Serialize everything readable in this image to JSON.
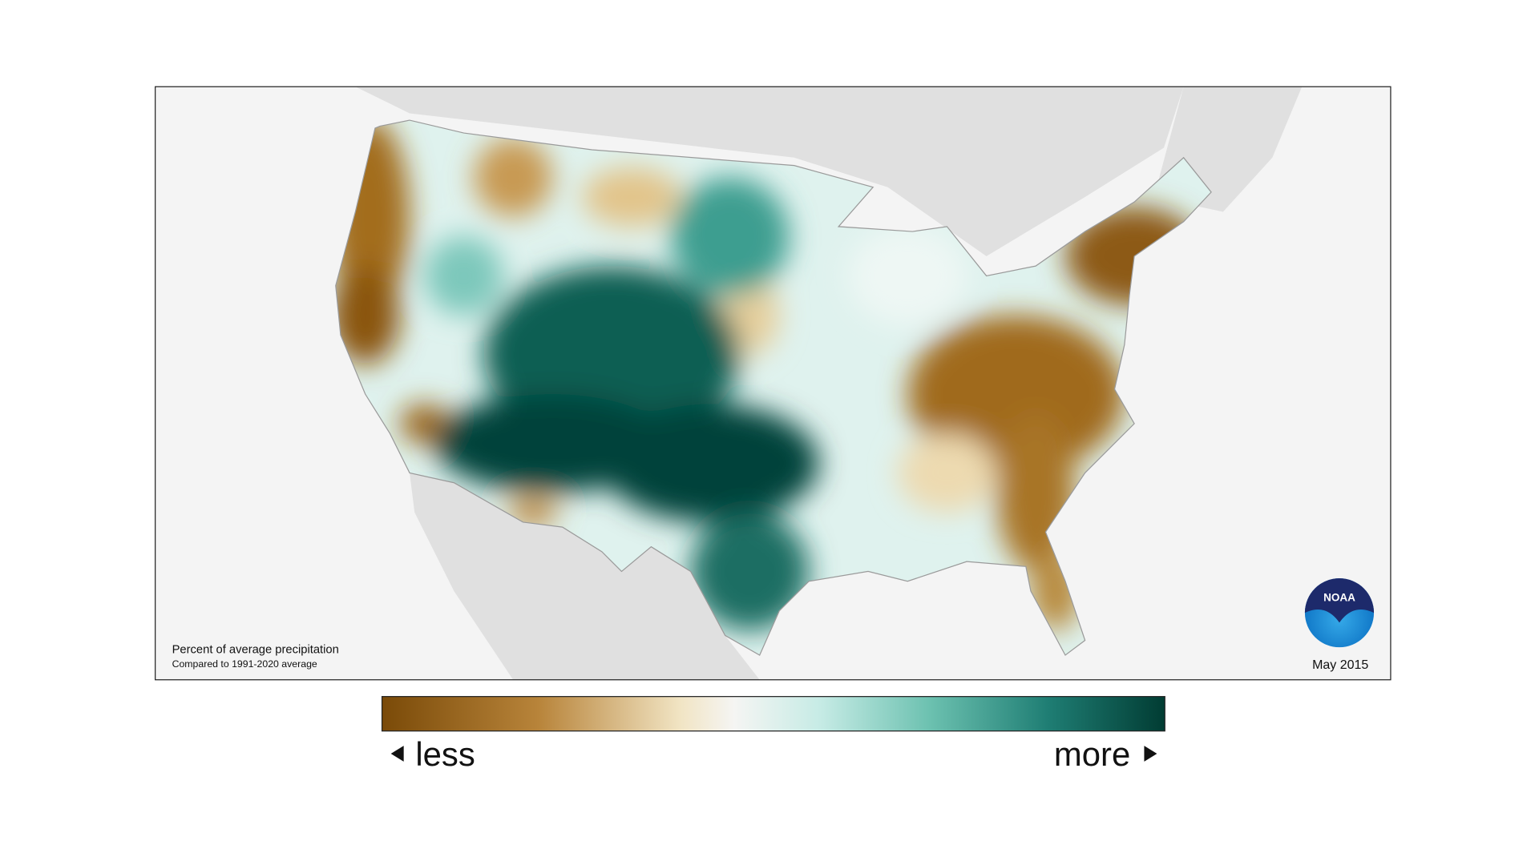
{
  "map": {
    "title": "Percent of average precipitation",
    "subtitle": "Compared to 1991-2020 average",
    "date": "May 2015",
    "logo": "NOAA"
  },
  "legend": {
    "less_label": "less",
    "more_label": "more"
  }
}
